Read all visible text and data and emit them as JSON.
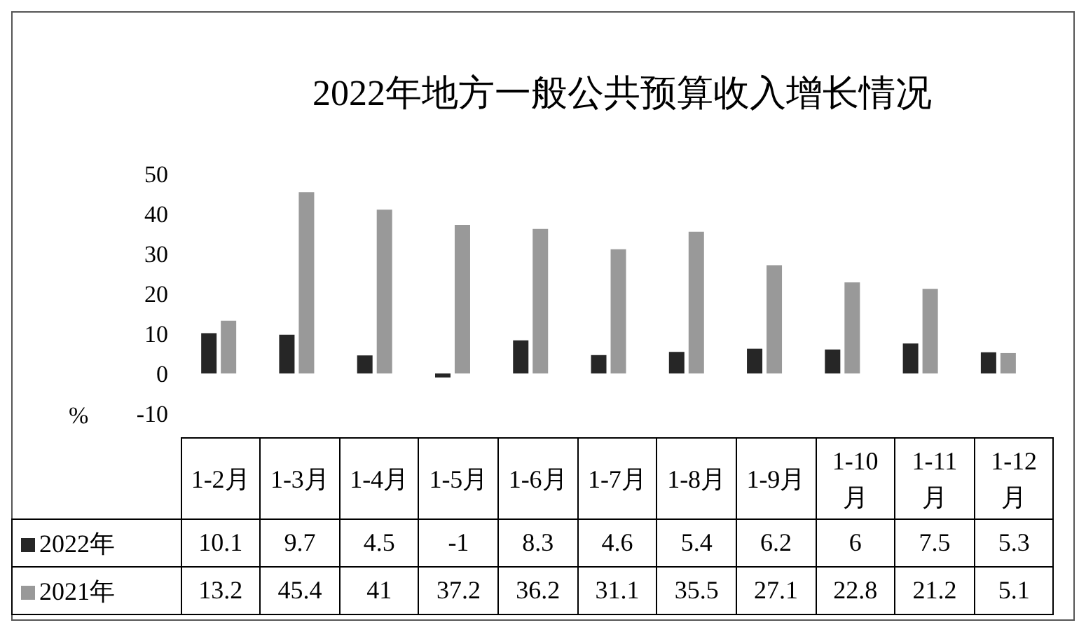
{
  "chart_data": {
    "type": "bar",
    "title": "2022年地方一般公共预算收入增长情况",
    "ylabel": "%",
    "categories": [
      "1-2月",
      "1-3月",
      "1-4月",
      "1-5月",
      "1-6月",
      "1-7月",
      "1-8月",
      "1-9月",
      "1-10月",
      "1-11月",
      "1-12月"
    ],
    "series": [
      {
        "name": "2022年",
        "color": "#262626",
        "values": [
          10.1,
          9.7,
          4.5,
          -1,
          8.3,
          4.6,
          5.4,
          6.2,
          6,
          7.5,
          5.3
        ]
      },
      {
        "name": "2021年",
        "color": "#999999",
        "values": [
          13.2,
          45.4,
          41,
          37.2,
          36.2,
          31.1,
          35.5,
          27.1,
          22.8,
          21.2,
          5.1
        ]
      }
    ],
    "ylim": [
      -10,
      50
    ],
    "yticks": [
      -10,
      0,
      10,
      20,
      30,
      40,
      50
    ],
    "grid": false,
    "legend": "bottom",
    "data_labels": true
  }
}
